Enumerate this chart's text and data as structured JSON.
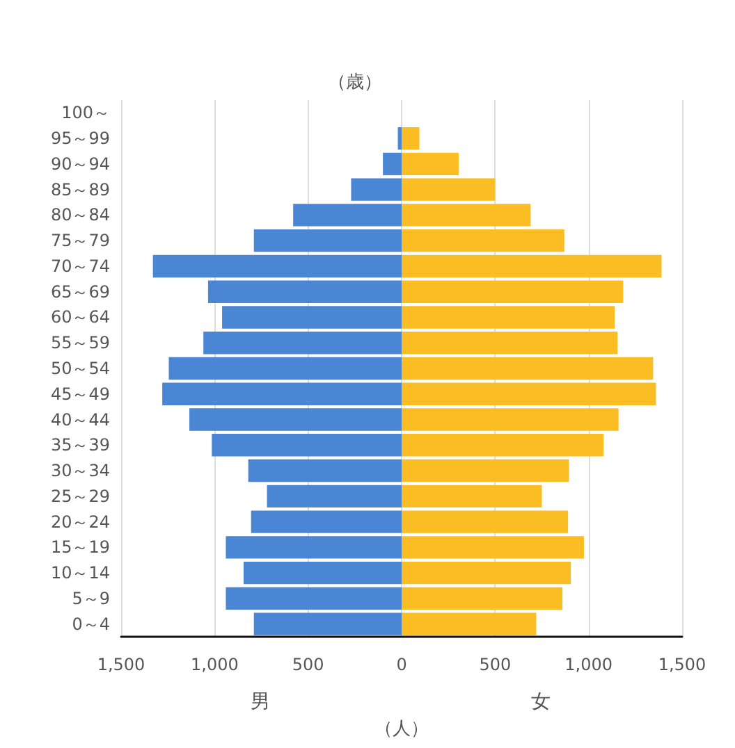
{
  "chart_data": {
    "type": "bar",
    "orientation": "horizontal",
    "ylabel": "（歳）",
    "xlabel": "（人）",
    "categories": [
      "100～",
      "95～99",
      "90～94",
      "85～89",
      "80～84",
      "75～79",
      "70～74",
      "65～69",
      "60～64",
      "55～59",
      "50～54",
      "45～49",
      "40～44",
      "35～39",
      "30～34",
      "25～29",
      "20～24",
      "15～19",
      "10～14",
      "5～9",
      "0～4"
    ],
    "series": [
      {
        "name": "男",
        "color": "#4a86d4",
        "values": [
          0,
          -20,
          -100,
          -270,
          -580,
          -790,
          -1330,
          -1035,
          -960,
          -1060,
          -1245,
          -1280,
          -1135,
          -1015,
          -820,
          -720,
          -805,
          -940,
          -845,
          -940,
          -790
        ]
      },
      {
        "name": "女",
        "color": "#fbbd24",
        "values": [
          0,
          95,
          305,
          500,
          690,
          870,
          1390,
          1185,
          1140,
          1155,
          1345,
          1360,
          1160,
          1080,
          895,
          750,
          890,
          975,
          905,
          860,
          720
        ]
      }
    ],
    "xlim": [
      -1500,
      1500
    ],
    "xticks": [
      {
        "value": -1500,
        "label": "1,500"
      },
      {
        "value": -1000,
        "label": "1,000"
      },
      {
        "value": -500,
        "label": "500"
      },
      0,
      500,
      {
        "value": 1000,
        "label": "1,000"
      },
      {
        "value": 1500,
        "label": "1,500"
      }
    ],
    "grid": "x",
    "legend": false,
    "stacked": true
  }
}
